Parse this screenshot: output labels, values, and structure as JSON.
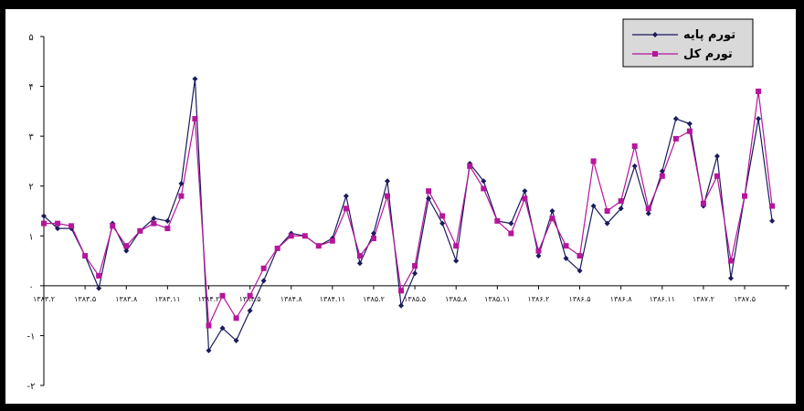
{
  "chart_data": {
    "type": "line",
    "title": "",
    "xlabel": "",
    "ylabel": "",
    "ylim": [
      -2,
      5
    ],
    "y_ticks": [
      "-۲",
      "-۱",
      "۰",
      "۱",
      "۲",
      "۳",
      "۴",
      "۵"
    ],
    "y_tick_values": [
      -2,
      -1,
      0,
      1,
      2,
      3,
      4,
      5
    ],
    "x_tick_labels": [
      {
        "index": 0,
        "label": "۱۳۸۳.۲"
      },
      {
        "index": 3,
        "label": "۱۳۸۳.۵"
      },
      {
        "index": 6,
        "label": "۱۳۸۳.۸"
      },
      {
        "index": 9,
        "label": "۱۳۸۳.۱۱"
      },
      {
        "index": 12,
        "label": "۱۳۸۴.۲"
      },
      {
        "index": 15,
        "label": "۱۳۸۴.۵"
      },
      {
        "index": 18,
        "label": "۱۳۸۴.۸"
      },
      {
        "index": 21,
        "label": "۱۳۸۴.۱۱"
      },
      {
        "index": 24,
        "label": "۱۳۸۵.۲"
      },
      {
        "index": 27,
        "label": "۱۳۸۵.۵"
      },
      {
        "index": 30,
        "label": "۱۳۸۵.۸"
      },
      {
        "index": 33,
        "label": "۱۳۸۵.۱۱"
      },
      {
        "index": 36,
        "label": "۱۳۸۶.۲"
      },
      {
        "index": 39,
        "label": "۱۳۸۶.۵"
      },
      {
        "index": 42,
        "label": "۱۳۸۶.۸"
      },
      {
        "index": 45,
        "label": "۱۳۸۶.۱۱"
      },
      {
        "index": 48,
        "label": "۱۳۸۷.۲"
      },
      {
        "index": 51,
        "label": "۱۳۸۷.۵"
      }
    ],
    "point_count": 55,
    "grid": false,
    "legend_position": "top-right",
    "series": [
      {
        "name": "تورم پایه",
        "color": "#1a1a5e",
        "marker": "diamond",
        "values": [
          1.4,
          1.15,
          1.15,
          0.6,
          -0.05,
          1.25,
          0.7,
          1.1,
          1.35,
          1.3,
          2.05,
          4.15,
          -1.3,
          -0.85,
          -1.1,
          -0.5,
          0.1,
          0.75,
          1.05,
          1.0,
          0.8,
          0.95,
          1.8,
          0.45,
          1.05,
          2.1,
          -0.4,
          0.25,
          1.75,
          1.25,
          0.5,
          2.45,
          2.1,
          1.3,
          1.25,
          1.9,
          0.6,
          1.5,
          0.55,
          0.3,
          1.6,
          1.25,
          1.55,
          2.4,
          1.45,
          2.3,
          3.35,
          3.25,
          1.6,
          2.6,
          0.15,
          1.8,
          3.35,
          1.3,
          null
        ]
      },
      {
        "name": "تورم کل",
        "color": "#b5169b",
        "marker": "square",
        "values": [
          1.25,
          1.25,
          1.2,
          0.6,
          0.2,
          1.2,
          0.8,
          1.1,
          1.25,
          1.15,
          1.8,
          3.35,
          -0.8,
          -0.2,
          -0.65,
          -0.2,
          0.35,
          0.75,
          1.0,
          1.0,
          0.8,
          0.9,
          1.55,
          0.6,
          0.95,
          1.8,
          -0.1,
          0.4,
          1.9,
          1.4,
          0.8,
          2.4,
          1.95,
          1.3,
          1.05,
          1.75,
          0.7,
          1.35,
          0.8,
          0.6,
          2.5,
          1.5,
          1.7,
          2.8,
          1.55,
          2.2,
          2.95,
          3.1,
          1.65,
          2.2,
          0.5,
          1.8,
          3.9,
          1.6,
          null
        ]
      }
    ]
  }
}
